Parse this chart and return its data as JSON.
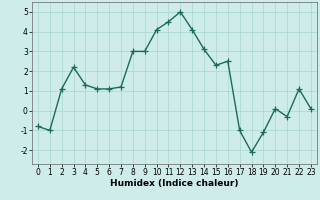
{
  "title": "",
  "xlabel": "Humidex (Indice chaleur)",
  "ylabel": "",
  "bg_color": "#ceecea",
  "line_color": "#1a6b5a",
  "grid_color": "#aed8d4",
  "x": [
    0,
    1,
    2,
    3,
    4,
    5,
    6,
    7,
    8,
    9,
    10,
    11,
    12,
    13,
    14,
    15,
    16,
    17,
    18,
    19,
    20,
    21,
    22,
    23
  ],
  "y": [
    -0.8,
    -1.0,
    1.1,
    2.2,
    1.3,
    1.1,
    1.1,
    1.2,
    3.0,
    3.0,
    4.1,
    4.5,
    5.0,
    4.1,
    3.1,
    2.3,
    2.5,
    -1.0,
    -2.1,
    -1.1,
    0.1,
    -0.3,
    1.1,
    0.1
  ],
  "xlim": [
    -0.5,
    23.5
  ],
  "ylim": [
    -2.7,
    5.5
  ],
  "yticks": [
    -2,
    -1,
    0,
    1,
    2,
    3,
    4,
    5
  ],
  "xticks": [
    0,
    1,
    2,
    3,
    4,
    5,
    6,
    7,
    8,
    9,
    10,
    11,
    12,
    13,
    14,
    15,
    16,
    17,
    18,
    19,
    20,
    21,
    22,
    23
  ],
  "marker": "+",
  "markersize": 4,
  "linewidth": 1.0,
  "label_fontsize": 6.5,
  "tick_fontsize": 5.5
}
